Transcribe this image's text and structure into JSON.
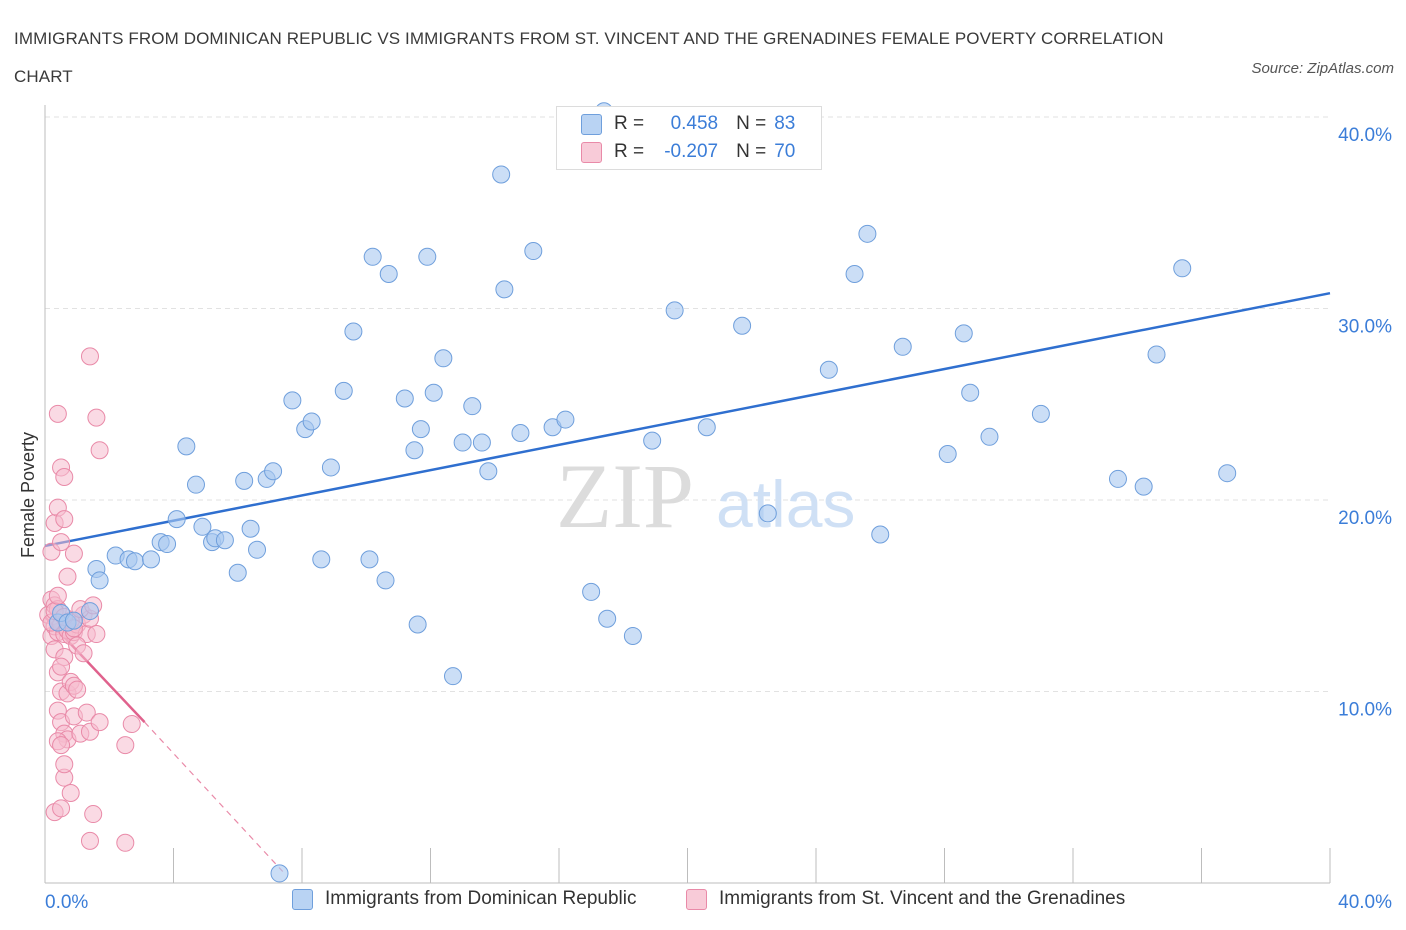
{
  "title": "IMMIGRANTS FROM DOMINICAN REPUBLIC VS IMMIGRANTS FROM ST. VINCENT AND THE GRENADINES FEMALE POVERTY CORRELATION CHART",
  "source": "Source: ZipAtlas.com",
  "watermark": {
    "zip": "ZIP",
    "atlas": "atlas"
  },
  "legend": {
    "r_label": "R =",
    "n_label": "N =",
    "series1": {
      "r": "0.458",
      "n": "83"
    },
    "series2": {
      "r": "-0.207",
      "n": "70"
    }
  },
  "colors": {
    "blue_fill": "#a9c8f0",
    "blue_stroke": "#6f9fdc",
    "blue_line": "#2f6fcf",
    "pink_fill": "#f5bccd",
    "pink_stroke": "#e98aa8",
    "pink_line": "#e0628d",
    "axis_text": "#3b7dd8",
    "grid": "#e2e2e2"
  },
  "chart_data": {
    "type": "scatter",
    "title": "IMMIGRANTS FROM DOMINICAN REPUBLIC VS IMMIGRANTS FROM ST. VINCENT AND THE GRENADINES FEMALE POVERTY CORRELATION CHART",
    "xlabel": "",
    "ylabel": "Female Poverty",
    "xlim": [
      0,
      40
    ],
    "ylim": [
      0,
      40
    ],
    "x_tick_labels": [
      "0.0%",
      "40.0%"
    ],
    "y_tick_labels": [
      "10.0%",
      "20.0%",
      "30.0%",
      "40.0%"
    ],
    "y_ticks": [
      10,
      20,
      30,
      40
    ],
    "grid": true,
    "legend_position": "top-center",
    "series": [
      {
        "name": "Immigrants from Dominican Republic",
        "color": "#a9c8f0",
        "r": 0.458,
        "n": 83,
        "trend": {
          "x": [
            0,
            40
          ],
          "y": [
            17.6,
            30.8
          ]
        },
        "points": [
          [
            0.4,
            13.6
          ],
          [
            0.5,
            14.1
          ],
          [
            0.7,
            13.6
          ],
          [
            0.9,
            13.7
          ],
          [
            1.4,
            14.2
          ],
          [
            1.6,
            16.4
          ],
          [
            1.7,
            15.8
          ],
          [
            2.2,
            17.1
          ],
          [
            2.6,
            16.9
          ],
          [
            2.8,
            16.8
          ],
          [
            3.3,
            16.9
          ],
          [
            3.6,
            17.8
          ],
          [
            3.8,
            17.7
          ],
          [
            4.1,
            19.0
          ],
          [
            4.4,
            22.8
          ],
          [
            4.7,
            20.8
          ],
          [
            4.9,
            18.6
          ],
          [
            5.2,
            17.8
          ],
          [
            5.3,
            18.0
          ],
          [
            5.6,
            17.9
          ],
          [
            6.0,
            16.2
          ],
          [
            6.2,
            21.0
          ],
          [
            6.4,
            18.5
          ],
          [
            6.6,
            17.4
          ],
          [
            6.9,
            21.1
          ],
          [
            7.1,
            21.5
          ],
          [
            7.7,
            25.2
          ],
          [
            8.1,
            23.7
          ],
          [
            8.3,
            24.1
          ],
          [
            8.6,
            16.9
          ],
          [
            8.9,
            21.7
          ],
          [
            9.3,
            25.7
          ],
          [
            9.6,
            28.8
          ],
          [
            10.1,
            16.9
          ],
          [
            10.2,
            32.7
          ],
          [
            10.6,
            15.8
          ],
          [
            10.7,
            31.8
          ],
          [
            11.2,
            25.3
          ],
          [
            11.5,
            22.6
          ],
          [
            11.7,
            23.7
          ],
          [
            11.6,
            13.5
          ],
          [
            11.9,
            32.7
          ],
          [
            12.1,
            25.6
          ],
          [
            12.4,
            27.4
          ],
          [
            12.7,
            10.8
          ],
          [
            13.0,
            23.0
          ],
          [
            13.3,
            24.9
          ],
          [
            13.8,
            21.5
          ],
          [
            14.2,
            37.0
          ],
          [
            14.3,
            31.0
          ],
          [
            14.8,
            23.5
          ],
          [
            15.2,
            33.0
          ],
          [
            15.8,
            23.8
          ],
          [
            16.2,
            24.2
          ],
          [
            17.0,
            15.2
          ],
          [
            17.5,
            13.8
          ],
          [
            18.3,
            12.9
          ],
          [
            18.9,
            23.1
          ],
          [
            19.6,
            29.9
          ],
          [
            20.6,
            23.8
          ],
          [
            21.7,
            29.1
          ],
          [
            22.5,
            19.3
          ],
          [
            24.4,
            26.8
          ],
          [
            25.2,
            31.8
          ],
          [
            25.6,
            33.9
          ],
          [
            26.0,
            18.2
          ],
          [
            26.7,
            28.0
          ],
          [
            28.1,
            22.4
          ],
          [
            28.6,
            28.7
          ],
          [
            28.8,
            25.6
          ],
          [
            29.4,
            23.3
          ],
          [
            31.0,
            24.5
          ],
          [
            33.4,
            21.1
          ],
          [
            34.2,
            20.7
          ],
          [
            34.6,
            27.6
          ],
          [
            35.4,
            32.1
          ],
          [
            36.8,
            21.4
          ],
          [
            17.4,
            40.3
          ],
          [
            21.3,
            39.4
          ],
          [
            13.6,
            23.0
          ],
          [
            21.7,
            39.6
          ],
          [
            5.0,
            41.1
          ],
          [
            7.3,
            0.5
          ]
        ]
      },
      {
        "name": "Immigrants from St. Vincent and the Grenadines",
        "color": "#f5bccd",
        "r": -0.207,
        "n": 70,
        "trend": {
          "x": [
            0,
            3.1
          ],
          "y": [
            13.9,
            8.4
          ]
        },
        "trend_dashed": {
          "x": [
            3.1,
            7.4
          ],
          "y": [
            8.4,
            0.6
          ]
        },
        "points": [
          [
            0.1,
            14.0
          ],
          [
            0.2,
            14.8
          ],
          [
            0.2,
            12.9
          ],
          [
            0.3,
            13.4
          ],
          [
            0.3,
            14.5
          ],
          [
            0.4,
            13.1
          ],
          [
            0.4,
            14.3
          ],
          [
            0.5,
            13.5
          ],
          [
            0.6,
            13.0
          ],
          [
            0.7,
            13.2
          ],
          [
            0.8,
            12.9
          ],
          [
            0.9,
            13.1
          ],
          [
            1.0,
            13.5
          ],
          [
            1.2,
            14.0
          ],
          [
            1.3,
            13.0
          ],
          [
            1.4,
            13.8
          ],
          [
            0.2,
            17.3
          ],
          [
            0.3,
            18.8
          ],
          [
            0.4,
            19.6
          ],
          [
            0.5,
            17.8
          ],
          [
            0.6,
            19.0
          ],
          [
            0.7,
            16.0
          ],
          [
            0.8,
            13.7
          ],
          [
            0.9,
            17.2
          ],
          [
            1.0,
            12.4
          ],
          [
            1.1,
            14.3
          ],
          [
            1.5,
            14.5
          ],
          [
            1.6,
            13.0
          ],
          [
            0.4,
            24.5
          ],
          [
            0.5,
            21.7
          ],
          [
            0.6,
            21.2
          ],
          [
            1.4,
            27.5
          ],
          [
            1.6,
            24.3
          ],
          [
            1.7,
            22.6
          ],
          [
            0.3,
            12.2
          ],
          [
            0.4,
            11.0
          ],
          [
            0.5,
            10.0
          ],
          [
            0.6,
            11.8
          ],
          [
            0.7,
            9.9
          ],
          [
            0.8,
            10.5
          ],
          [
            0.9,
            10.3
          ],
          [
            0.4,
            9.0
          ],
          [
            0.5,
            8.4
          ],
          [
            0.6,
            7.8
          ],
          [
            0.7,
            7.5
          ],
          [
            0.9,
            8.7
          ],
          [
            1.1,
            7.8
          ],
          [
            1.3,
            8.9
          ],
          [
            1.4,
            7.9
          ],
          [
            1.7,
            8.4
          ],
          [
            2.5,
            7.2
          ],
          [
            2.7,
            8.3
          ],
          [
            0.4,
            7.4
          ],
          [
            0.5,
            7.2
          ],
          [
            0.6,
            5.5
          ],
          [
            0.8,
            4.7
          ],
          [
            0.3,
            3.7
          ],
          [
            0.5,
            3.9
          ],
          [
            1.5,
            3.6
          ],
          [
            1.4,
            2.2
          ],
          [
            2.5,
            2.1
          ],
          [
            0.2,
            13.6
          ],
          [
            0.3,
            14.2
          ],
          [
            0.4,
            15.0
          ],
          [
            0.6,
            13.9
          ],
          [
            0.9,
            13.3
          ],
          [
            1.2,
            12.0
          ],
          [
            1.0,
            10.1
          ],
          [
            0.6,
            6.2
          ],
          [
            0.5,
            11.3
          ]
        ]
      }
    ]
  },
  "bottom_legend": {
    "series1": "Immigrants from Dominican Republic",
    "series2": "Immigrants from St. Vincent and the Grenadines"
  }
}
